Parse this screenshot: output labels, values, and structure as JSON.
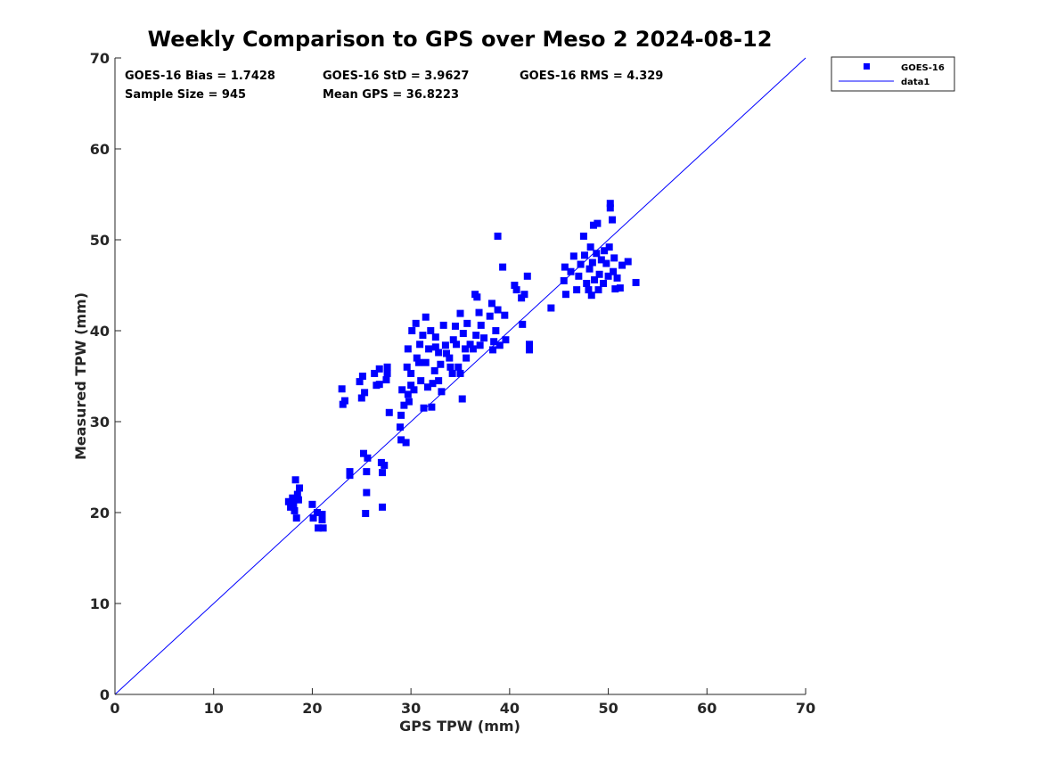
{
  "chart_data": {
    "type": "scatter",
    "title": "Weekly Comparison to GPS over Meso 2 2024-08-12",
    "xlabel": "GPS TPW (mm)",
    "ylabel": "Measured TPW (mm)",
    "xlim": [
      0,
      70
    ],
    "ylim": [
      0,
      70
    ],
    "xticks": [
      0,
      10,
      20,
      30,
      40,
      50,
      60,
      70
    ],
    "yticks": [
      0,
      10,
      20,
      30,
      40,
      50,
      60,
      70
    ],
    "grid": false,
    "legend_position": "outside-top-right",
    "stats": {
      "bias": "GOES-16 Bias = 1.7428",
      "std": "GOES-16 StD = 3.9627",
      "rms": "GOES-16 RMS = 4.329",
      "sample": "Sample Size = 945",
      "mean": "Mean GPS = 36.8223"
    },
    "series": [
      {
        "name": "GOES-16",
        "marker": "square",
        "color": "#0000ff",
        "points": [
          [
            17.6,
            21.2
          ],
          [
            17.8,
            20.6
          ],
          [
            18.0,
            21.6
          ],
          [
            18.2,
            20.2
          ],
          [
            18.3,
            23.6
          ],
          [
            18.5,
            22.0
          ],
          [
            18.4,
            19.4
          ],
          [
            18.7,
            22.7
          ],
          [
            17.9,
            21.0
          ],
          [
            18.1,
            20.8
          ],
          [
            18.6,
            21.4
          ],
          [
            20.0,
            20.9
          ],
          [
            20.1,
            19.4
          ],
          [
            20.5,
            20.0
          ],
          [
            20.6,
            18.3
          ],
          [
            21.0,
            19.8
          ],
          [
            21.1,
            18.3
          ],
          [
            21.0,
            19.2
          ],
          [
            23.0,
            33.6
          ],
          [
            23.1,
            31.9
          ],
          [
            23.3,
            32.3
          ],
          [
            23.8,
            24.5
          ],
          [
            23.8,
            24.1
          ],
          [
            24.8,
            34.4
          ],
          [
            25.0,
            32.6
          ],
          [
            25.1,
            35.0
          ],
          [
            25.3,
            33.2
          ],
          [
            25.2,
            26.5
          ],
          [
            25.6,
            26.0
          ],
          [
            25.5,
            24.5
          ],
          [
            25.5,
            22.2
          ],
          [
            25.4,
            19.9
          ],
          [
            26.3,
            35.3
          ],
          [
            26.5,
            34.0
          ],
          [
            26.8,
            34.1
          ],
          [
            26.8,
            35.8
          ],
          [
            27.0,
            25.5
          ],
          [
            27.1,
            24.4
          ],
          [
            27.3,
            25.2
          ],
          [
            27.1,
            20.6
          ],
          [
            27.5,
            34.6
          ],
          [
            27.6,
            36.0
          ],
          [
            27.6,
            35.3
          ],
          [
            27.8,
            31.0
          ],
          [
            28.9,
            29.4
          ],
          [
            29.0,
            28.0
          ],
          [
            29.0,
            30.7
          ],
          [
            29.1,
            33.5
          ],
          [
            29.3,
            31.8
          ],
          [
            29.5,
            27.7
          ],
          [
            29.6,
            36.0
          ],
          [
            29.7,
            33.0
          ],
          [
            29.7,
            38.0
          ],
          [
            29.8,
            32.2
          ],
          [
            30.0,
            35.3
          ],
          [
            30.0,
            34.0
          ],
          [
            30.1,
            40.0
          ],
          [
            30.3,
            33.5
          ],
          [
            30.5,
            40.8
          ],
          [
            30.6,
            37.0
          ],
          [
            30.8,
            36.5
          ],
          [
            30.9,
            38.5
          ],
          [
            31.0,
            34.5
          ],
          [
            31.2,
            39.5
          ],
          [
            31.3,
            31.5
          ],
          [
            31.5,
            41.5
          ],
          [
            31.5,
            36.5
          ],
          [
            31.7,
            33.8
          ],
          [
            31.8,
            38.0
          ],
          [
            32.0,
            40.0
          ],
          [
            32.1,
            31.6
          ],
          [
            32.2,
            34.2
          ],
          [
            32.4,
            35.6
          ],
          [
            32.5,
            39.3
          ],
          [
            32.5,
            38.2
          ],
          [
            32.8,
            34.5
          ],
          [
            32.8,
            37.6
          ],
          [
            33.0,
            36.3
          ],
          [
            33.1,
            33.3
          ],
          [
            33.3,
            40.6
          ],
          [
            33.5,
            38.4
          ],
          [
            33.6,
            37.5
          ],
          [
            33.9,
            37.0
          ],
          [
            34.0,
            36.0
          ],
          [
            34.2,
            35.3
          ],
          [
            34.3,
            39.0
          ],
          [
            34.5,
            40.5
          ],
          [
            34.6,
            38.5
          ],
          [
            34.8,
            36.0
          ],
          [
            35.0,
            41.9
          ],
          [
            35.0,
            35.3
          ],
          [
            35.2,
            32.5
          ],
          [
            35.3,
            39.7
          ],
          [
            35.5,
            38.0
          ],
          [
            35.6,
            37.0
          ],
          [
            35.7,
            40.8
          ],
          [
            36.0,
            38.5
          ],
          [
            36.3,
            38.0
          ],
          [
            36.5,
            44.0
          ],
          [
            36.6,
            39.5
          ],
          [
            36.7,
            43.7
          ],
          [
            36.9,
            42.0
          ],
          [
            37.0,
            38.4
          ],
          [
            37.1,
            40.6
          ],
          [
            37.4,
            39.2
          ],
          [
            38.0,
            41.6
          ],
          [
            38.2,
            43.0
          ],
          [
            38.3,
            37.9
          ],
          [
            38.4,
            38.8
          ],
          [
            38.6,
            40.0
          ],
          [
            38.8,
            50.4
          ],
          [
            38.8,
            42.3
          ],
          [
            39.0,
            38.4
          ],
          [
            39.3,
            47.0
          ],
          [
            39.5,
            41.7
          ],
          [
            39.6,
            39.0
          ],
          [
            40.5,
            45.0
          ],
          [
            40.7,
            44.5
          ],
          [
            41.2,
            43.6
          ],
          [
            41.3,
            40.7
          ],
          [
            41.5,
            44.0
          ],
          [
            41.8,
            46.0
          ],
          [
            42.0,
            38.5
          ],
          [
            42.0,
            37.9
          ],
          [
            44.2,
            42.5
          ],
          [
            45.5,
            45.5
          ],
          [
            45.6,
            47.0
          ],
          [
            45.7,
            44.0
          ],
          [
            46.2,
            46.5
          ],
          [
            46.5,
            48.2
          ],
          [
            46.8,
            44.5
          ],
          [
            47.0,
            46.0
          ],
          [
            47.2,
            47.3
          ],
          [
            47.5,
            50.4
          ],
          [
            47.6,
            48.3
          ],
          [
            47.8,
            45.2
          ],
          [
            48.0,
            44.5
          ],
          [
            48.1,
            46.8
          ],
          [
            48.2,
            49.2
          ],
          [
            48.3,
            43.9
          ],
          [
            48.4,
            47.5
          ],
          [
            48.5,
            51.6
          ],
          [
            48.6,
            45.6
          ],
          [
            48.8,
            48.5
          ],
          [
            48.9,
            51.8
          ],
          [
            49.0,
            44.5
          ],
          [
            49.1,
            46.2
          ],
          [
            49.3,
            47.8
          ],
          [
            49.5,
            45.2
          ],
          [
            49.6,
            48.8
          ],
          [
            49.8,
            47.4
          ],
          [
            50.0,
            46.0
          ],
          [
            50.1,
            49.2
          ],
          [
            50.2,
            54.0
          ],
          [
            50.2,
            53.5
          ],
          [
            50.4,
            52.2
          ],
          [
            50.5,
            46.5
          ],
          [
            50.6,
            48.0
          ],
          [
            50.7,
            44.6
          ],
          [
            50.9,
            45.8
          ],
          [
            51.2,
            44.7
          ],
          [
            51.4,
            47.2
          ],
          [
            52.0,
            47.6
          ],
          [
            52.8,
            45.3
          ]
        ]
      }
    ],
    "reference_line": {
      "name": "data1",
      "x": [
        0,
        70
      ],
      "y": [
        0,
        70
      ],
      "color": "#0000ff"
    }
  }
}
